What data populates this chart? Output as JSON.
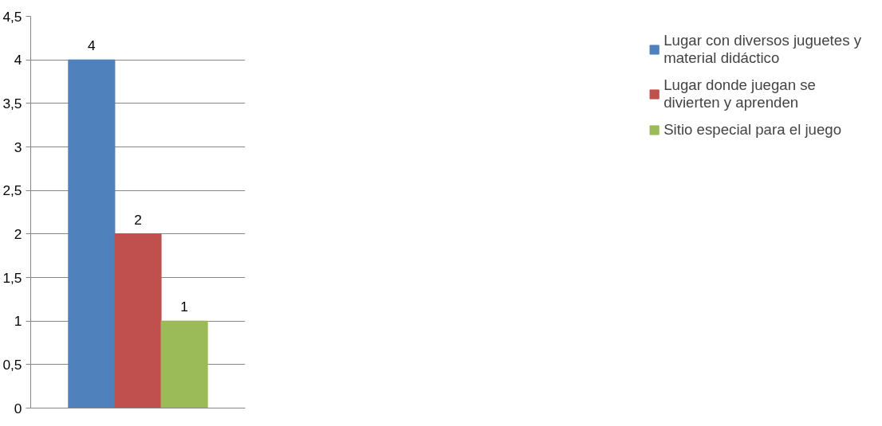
{
  "chart_data": {
    "type": "bar",
    "categories": [
      null
    ],
    "series": [
      {
        "name": "Lugar con diversos juguetes y material didáctico",
        "color": "#4f81bd",
        "values": [
          4
        ]
      },
      {
        "name": "Lugar donde juegan se divierten y aprenden",
        "color": "#c0504d",
        "values": [
          2
        ]
      },
      {
        "name": "Sitio especial para el juego",
        "color": "#9bbb59",
        "values": [
          1
        ]
      }
    ],
    "ylim": [
      0,
      4.5
    ],
    "yticks": [
      0,
      {
        "value": 0.5,
        "label": "0,5"
      },
      1,
      {
        "value": 1.5,
        "label": "1,5"
      },
      2,
      {
        "value": 2.5,
        "label": "2,5"
      },
      3,
      {
        "value": 3.5,
        "label": "3,5"
      },
      4,
      {
        "value": 4.5,
        "label": "4,5"
      }
    ],
    "grid": "y",
    "legend": "right",
    "data_labels": true
  }
}
